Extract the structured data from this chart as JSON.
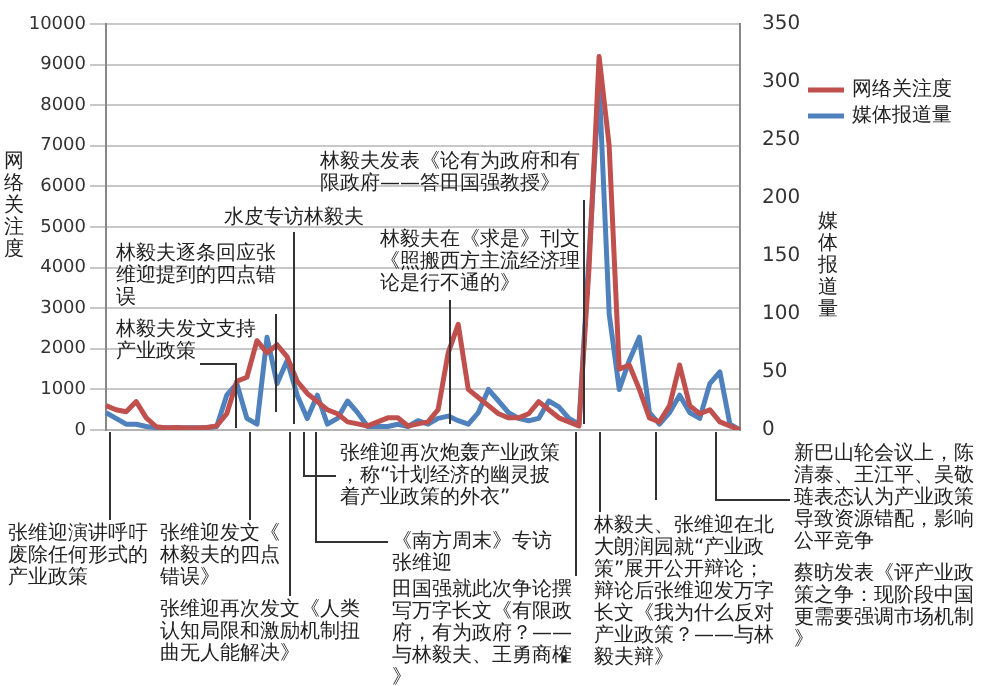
{
  "chart_data": {
    "type": "line",
    "categories": [
      null,
      null,
      null,
      null,
      null,
      null,
      null,
      null,
      null,
      null,
      null,
      null,
      null,
      null,
      null,
      null,
      null,
      null,
      null,
      null,
      null,
      null,
      null,
      null,
      null,
      null,
      null,
      null,
      null,
      null,
      null,
      null,
      null,
      null,
      null,
      null,
      null,
      null,
      null,
      null,
      null,
      null,
      null,
      null,
      null,
      null,
      null,
      null,
      null,
      null,
      null,
      null,
      null,
      null,
      null,
      null,
      null,
      null,
      null,
      null,
      null,
      null,
      null,
      null
    ],
    "ylabel": "网络关注度",
    "y2label": "媒体报道量",
    "series": [
      {
        "name": "网络关注度",
        "color": "#c0504d",
        "values": [
          600,
          500,
          450,
          700,
          300,
          80,
          50,
          60,
          50,
          50,
          60,
          100,
          400,
          1200,
          1300,
          2200,
          1900,
          2100,
          1800,
          1200,
          900,
          700,
          500,
          400,
          200,
          150,
          100,
          200,
          300,
          300,
          100,
          150,
          200,
          500,
          1900,
          2600,
          1000,
          800,
          600,
          400,
          300,
          300,
          400,
          700,
          500,
          300,
          200,
          100,
          4000,
          9200,
          7000,
          1500,
          1600,
          1000,
          300,
          200,
          600,
          1600,
          600,
          400,
          500,
          200,
          100,
          0
        ]
      },
      {
        "name": "媒体报道量",
        "color": "#4f81bd",
        "axis": "y2",
        "values": [
          15,
          10,
          5,
          5,
          3,
          2,
          2,
          2,
          2,
          2,
          2,
          3,
          30,
          40,
          10,
          5,
          80,
          40,
          60,
          30,
          10,
          30,
          5,
          10,
          25,
          15,
          3,
          3,
          3,
          5,
          3,
          8,
          5,
          10,
          12,
          8,
          5,
          15,
          35,
          25,
          15,
          10,
          8,
          10,
          25,
          20,
          10,
          5,
          150,
          300,
          100,
          35,
          60,
          80,
          15,
          5,
          15,
          30,
          15,
          10,
          40,
          50,
          5,
          0
        ]
      }
    ],
    "ylim": [
      0,
      10000
    ],
    "yticks": [
      0,
      1000,
      2000,
      3000,
      4000,
      5000,
      6000,
      7000,
      8000,
      9000,
      10000
    ],
    "y2lim": [
      0,
      350
    ],
    "y2ticks": [
      0,
      50,
      100,
      150,
      200,
      250,
      300,
      350
    ],
    "grid": "y",
    "legend": "right",
    "marker": "none",
    "line_style": "solid",
    "annotations": [
      "林毅夫发文支持产业政策",
      "林毅夫逐条回应张维迎提到的四点错误",
      "水皮专访林毅夫",
      "林毅夫在《求是》刊文《照搬西方主流经济理论是行不通的》",
      "林毅夫发表《论有为政府和有限政府——答田国强教授》",
      "张维迎演讲呼吁废除任何形式的产业政策",
      "张维迎发文《林毅夫的四点错误》",
      "张维迎再次炮轰产业政策，称“计划经济的幽灵披着产业政策的外衣”",
      "《南方周末》专访张维迎",
      "张维迎再次发文《人类认知局限和激励机制扭曲无人能解决》",
      "田国强就此次争论撰写万字长文《有限政府，有为政府？——与林毅夫、王勇商榷》",
      "林毅夫、张维迎在北大朗润园就“产业政策”展开公开辩论；辩论后张维迎发万字长文《我为什么反对产业政策？——与林毅夫辩》",
      "新巴山轮会议上，陈清泰、王江平、吴敬琏表态认为产业政策导致资源错配，影响公平竞争",
      "蔡昉发表《评产业政策之争：现阶段中国更需要强调市场机制》"
    ]
  }
}
